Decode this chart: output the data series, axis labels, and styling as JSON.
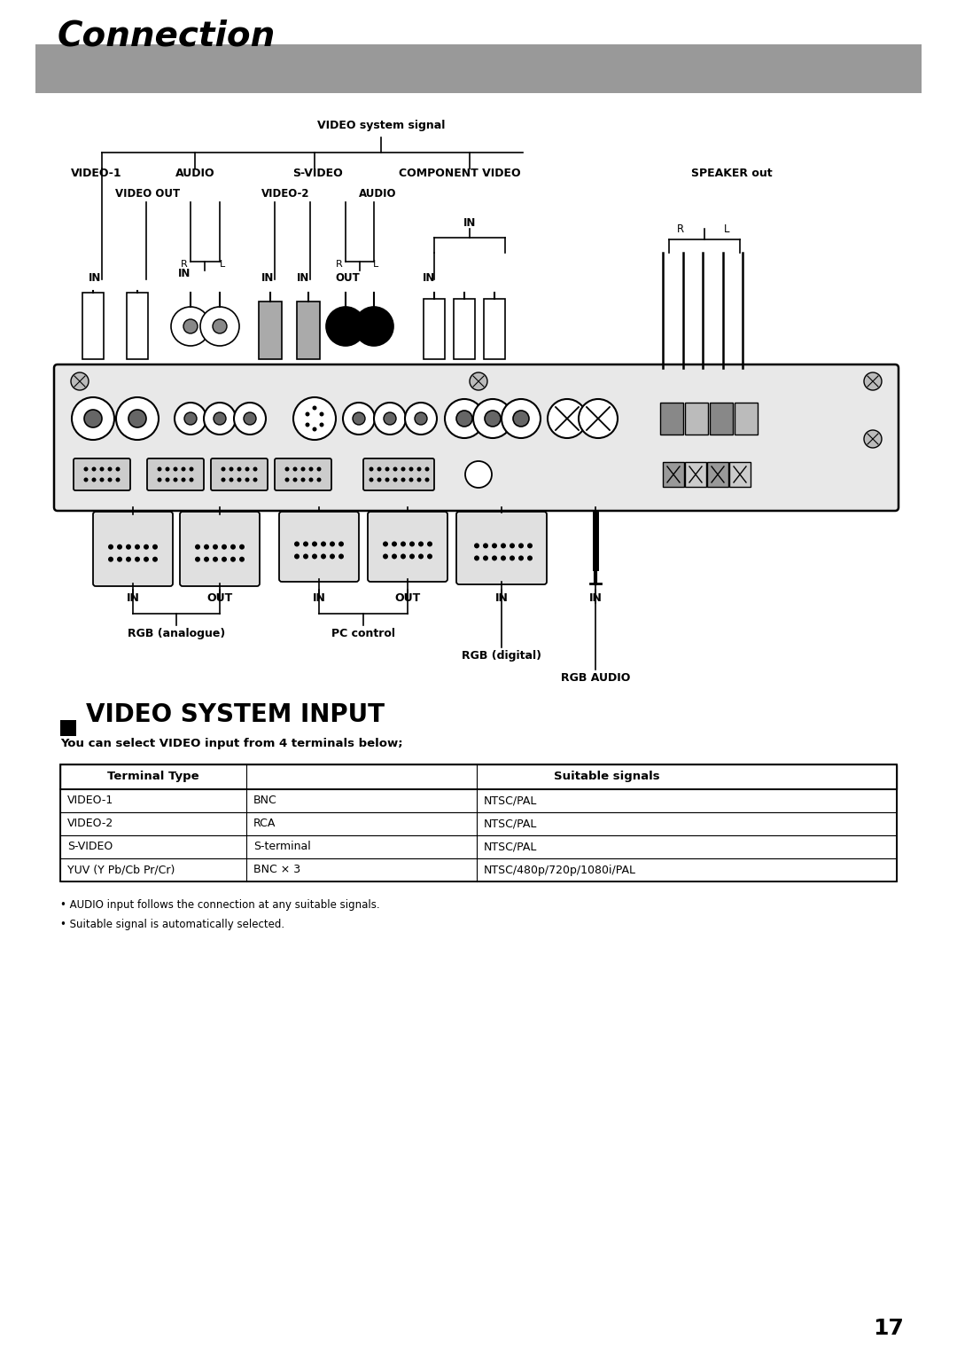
{
  "title": "Connection",
  "title_bg_color": "#999999",
  "page_bg_color": "#ffffff",
  "page_number": "17",
  "diagram_title": "VIDEO system signal",
  "video_system_input_title": "VIDEO SYSTEM INPUT",
  "subtitle_text": "You can select VIDEO input from 4 terminals below;",
  "table_headers": [
    "",
    "Terminal Type",
    "Suitable signals"
  ],
  "table_rows": [
    [
      "VIDEO-1",
      "BNC",
      "NTSC/PAL"
    ],
    [
      "VIDEO-2",
      "RCA",
      "NTSC/PAL"
    ],
    [
      "S-VIDEO",
      "S-terminal",
      "NTSC/PAL"
    ],
    [
      "YUV (Y Pb/Cb Pr/Cr)",
      "BNC × 3",
      "NTSC/480p/720p/1080i/PAL"
    ]
  ],
  "bullet_notes": [
    "• AUDIO input follows the connection at any suitable signals.",
    "• Suitable signal is automatically selected."
  ]
}
